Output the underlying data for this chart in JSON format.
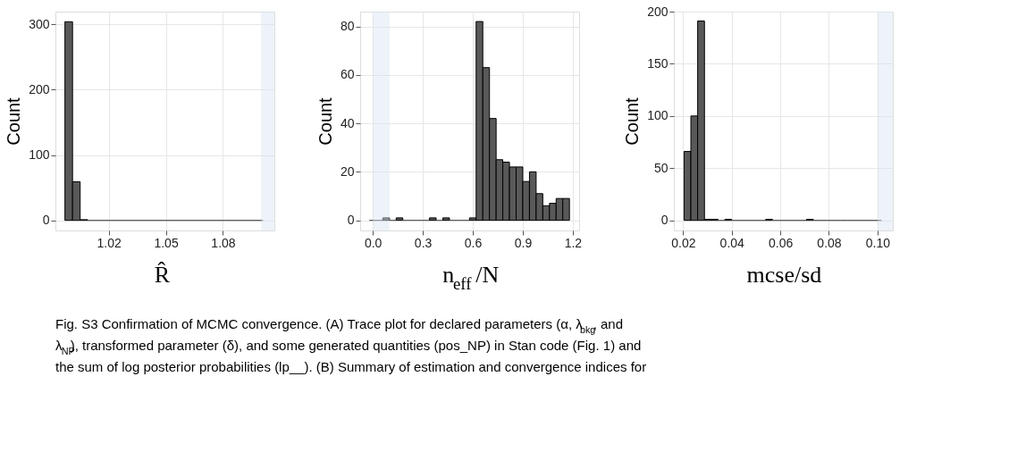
{
  "chart_data": [
    {
      "type": "histogram",
      "xlabel": "R̂",
      "ylabel": "Count",
      "color": "#595959",
      "bins": [
        0.997,
        1.001,
        1.005,
        1.009,
        1.013,
        1.017,
        1.021,
        1.025,
        1.029,
        1.033,
        1.037,
        1.041,
        1.045,
        1.049,
        1.053,
        1.057,
        1.061,
        1.065,
        1.069,
        1.073,
        1.077,
        1.081,
        1.085,
        1.089,
        1.093,
        1.097,
        1.101
      ],
      "values": [
        304,
        59,
        1,
        0,
        0,
        0,
        0,
        0,
        0,
        0,
        0,
        0,
        0,
        0,
        0,
        0,
        0,
        0,
        0,
        0,
        0,
        0,
        0,
        0,
        0,
        0
      ],
      "xlim": [
        0.992,
        1.107
      ],
      "ylim": [
        -15.5,
        319.5
      ],
      "xticks": [
        1.02,
        1.05,
        1.08
      ],
      "yticks": [
        0,
        100,
        200,
        300
      ],
      "grid": true,
      "bands": [
        {
          "axis": "x",
          "from": 1.1,
          "to": 1.107,
          "color": "#d6e4ef"
        }
      ],
      "annotations": [
        "Fig. S3 Confirmation of MCMC convergence. (A) Trace plot for declared parameters (α, λ$_{bkg}$, and",
        "λ$_{NP}$), transformed parameter (δ), and some generated quantities (pos_NP) in Stan code (Fig. 1) and",
        "the sum of log posterior probabilities (lp__). (B) Summary of estimation and convergence indices for"
      ]
    },
    {
      "type": "histogram",
      "xlabel": "n$_{eff}$/N",
      "ylabel": "Count",
      "color": "#595959",
      "bins": [
        -0.02,
        0.02,
        0.06,
        0.1,
        0.14,
        0.18,
        0.22,
        0.26,
        0.3,
        0.34,
        0.38,
        0.42,
        0.46,
        0.5,
        0.54,
        0.58,
        0.62,
        0.66,
        0.7,
        0.74,
        0.78,
        0.82,
        0.86,
        0.9,
        0.94,
        0.98,
        1.02,
        1.06,
        1.1,
        1.14,
        1.18
      ],
      "values": [
        0,
        0,
        1,
        0,
        1,
        0,
        0,
        0,
        0,
        1,
        0,
        1,
        0,
        0,
        0,
        1,
        82,
        63,
        42,
        25,
        24,
        22,
        22,
        16,
        20,
        11,
        6,
        7,
        9,
        9
      ],
      "xlim": [
        -0.076,
        1.238
      ],
      "ylim": [
        -4.2,
        86.1
      ],
      "xticks": [
        {
          "value": 0,
          "label": "0.0"
        },
        0.3,
        0.6,
        0.9,
        1.2
      ],
      "yticks": [
        0,
        20,
        40,
        60,
        80
      ],
      "grid": true,
      "bands": [
        {
          "axis": "x",
          "from": 0,
          "to": 0.1,
          "color": "#d6e4ef"
        }
      ]
    },
    {
      "type": "histogram",
      "xlabel": "mcse/sd",
      "ylabel": "Count",
      "color": "#595959",
      "bins": [
        0.0204,
        0.0232,
        0.026,
        0.0288,
        0.0316,
        0.0344,
        0.0372,
        0.04,
        0.0428,
        0.0456,
        0.0484,
        0.0512,
        0.054,
        0.0568,
        0.0596,
        0.0624,
        0.0652,
        0.068,
        0.0708,
        0.0736,
        0.0764,
        0.0792,
        0.082,
        0.0848,
        0.0876,
        0.0904,
        0.0932,
        0.096,
        0.0988,
        0.1016
      ],
      "values": [
        66,
        100,
        191,
        1,
        1,
        0,
        1,
        0,
        0,
        0,
        0,
        0,
        1,
        0,
        0,
        0,
        0,
        0,
        1,
        0,
        0,
        0,
        0,
        0,
        0,
        0,
        0,
        0,
        0
      ],
      "xlim": [
        0.0162,
        0.1063
      ],
      "ylim": [
        -9.7,
        200
      ],
      "xticks": [
        0.02,
        0.04,
        0.06,
        0.08,
        {
          "value": 0.1,
          "label": "0.10"
        }
      ],
      "yticks": [
        0,
        50,
        100,
        150,
        200
      ],
      "grid": true,
      "bands": [
        {
          "axis": "x",
          "from": 0.1,
          "to": 0.1063,
          "color": "#d6e4ef"
        }
      ]
    }
  ]
}
